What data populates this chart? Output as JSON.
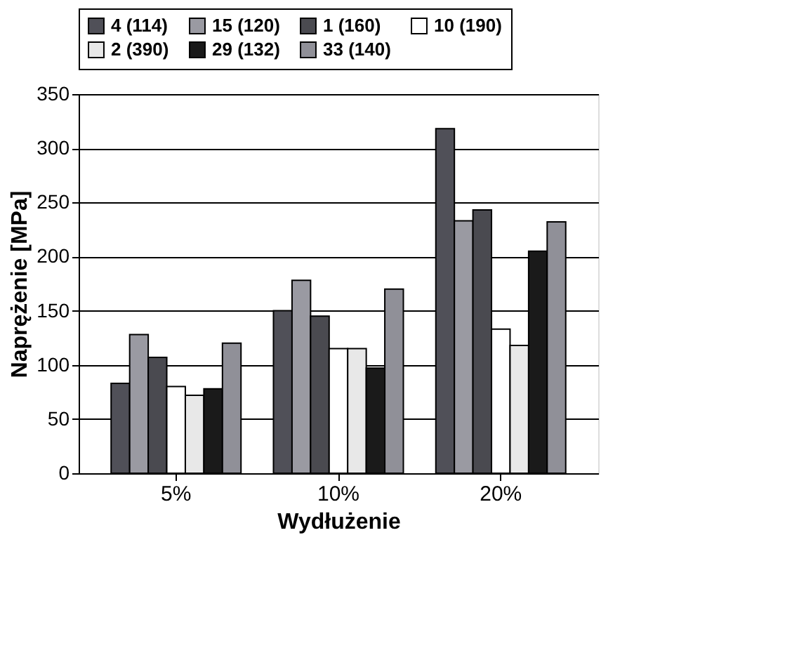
{
  "chart_data": {
    "type": "bar",
    "xlabel": "Wydłużenie",
    "ylabel": "Naprężenie [MPa]",
    "categories": [
      "5%",
      "10%",
      "20%"
    ],
    "series": [
      {
        "name": "4 (114)",
        "color": "#505058",
        "values": [
          83,
          150,
          318
        ]
      },
      {
        "name": "15 (120)",
        "color": "#9a9aa2",
        "values": [
          128,
          178,
          233
        ]
      },
      {
        "name": "1 (160)",
        "color": "#4a4a50",
        "values": [
          107,
          145,
          243
        ]
      },
      {
        "name": "10 (190)",
        "color": "#ffffff",
        "values": [
          80,
          115,
          133
        ]
      },
      {
        "name": "2 (390)",
        "color": "#e8e8e8",
        "values": [
          72,
          115,
          118
        ]
      },
      {
        "name": "29 (132)",
        "color": "#1a1a1a",
        "values": [
          78,
          97,
          205
        ]
      },
      {
        "name": "33 (140)",
        "color": "#909098",
        "values": [
          120,
          170,
          232
        ]
      }
    ],
    "ylim": [
      0,
      350
    ],
    "yticks": [
      0,
      50,
      100,
      150,
      200,
      250,
      300,
      350
    ],
    "grid": "y",
    "legend": "top"
  }
}
